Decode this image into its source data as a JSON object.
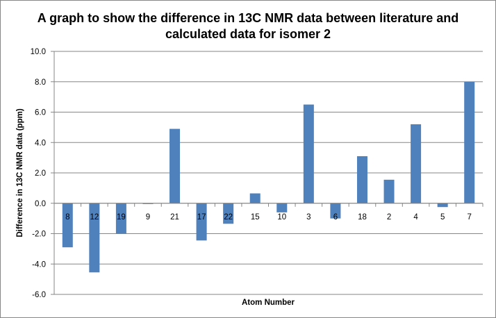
{
  "chart_data": {
    "type": "bar",
    "title_line1": "A graph to show the difference in 13C NMR data between literature and",
    "title_line2": "calculated data for isomer 2",
    "xlabel": "Atom Number",
    "ylabel": "Difference in 13C NMR data (ppm)",
    "categories": [
      "8",
      "12",
      "19",
      "9",
      "21",
      "17",
      "22",
      "15",
      "10",
      "3",
      "6",
      "18",
      "2",
      "4",
      "5",
      "7"
    ],
    "values": [
      -2.9,
      -4.55,
      -2.0,
      -0.05,
      4.9,
      -2.45,
      -1.35,
      0.65,
      -0.6,
      6.5,
      -1.0,
      3.1,
      1.55,
      5.2,
      -0.25,
      8.0
    ],
    "ylim": [
      -6.0,
      10.0
    ],
    "yticks": [
      "10.0",
      "8.0",
      "6.0",
      "4.0",
      "2.0",
      "0.0",
      "-2.0",
      "-4.0",
      "-6.0"
    ],
    "grid": true,
    "legend": "none",
    "bar_color": "#4F81BD"
  }
}
